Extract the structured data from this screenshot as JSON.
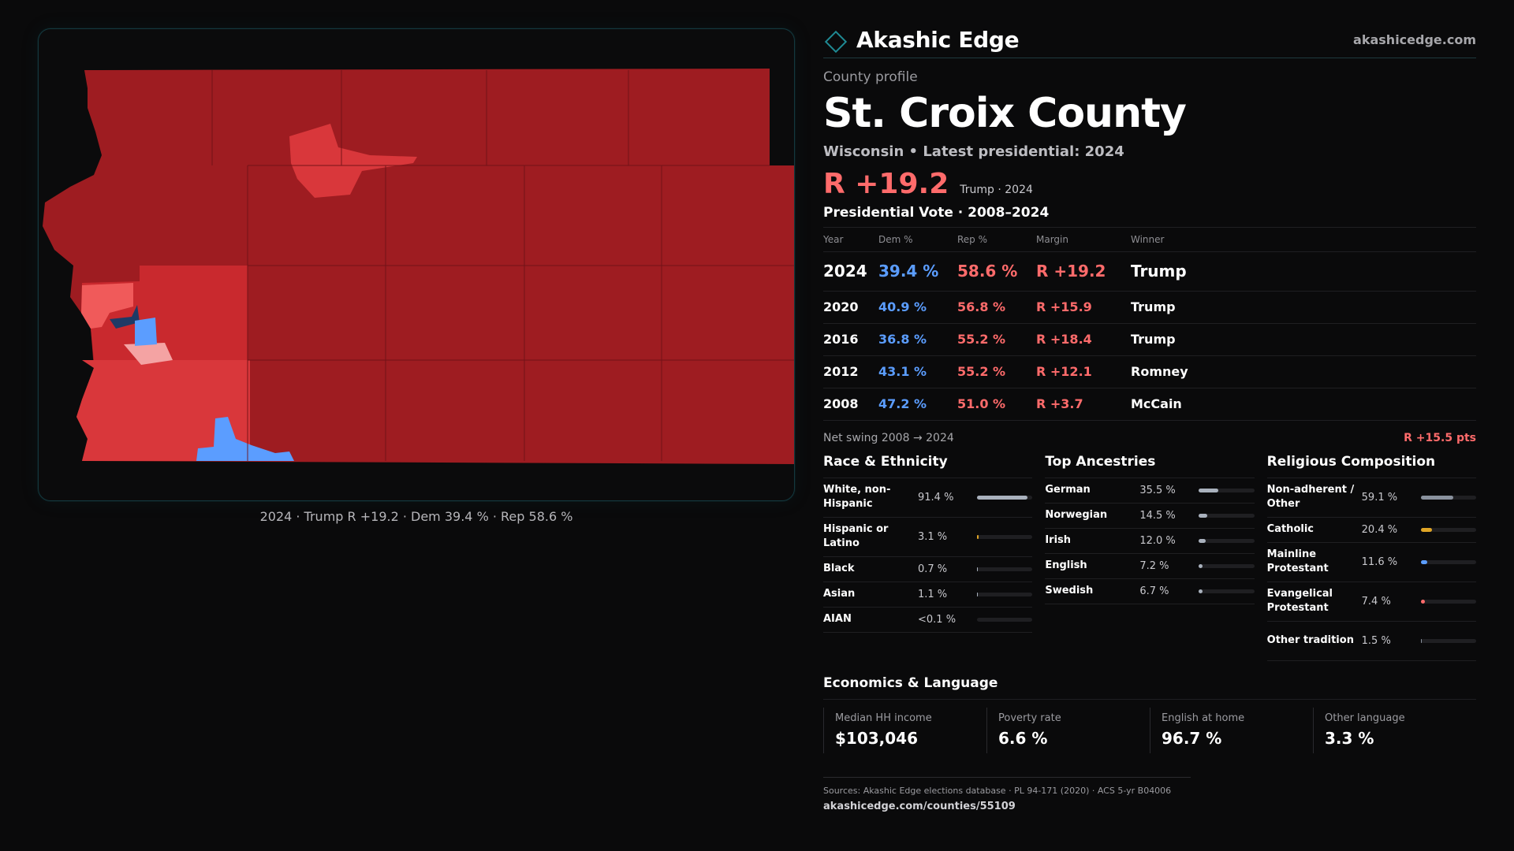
{
  "brand": {
    "name": "Akashic Edge",
    "url": "akashicedge.com",
    "icon": "diamond-outline-icon",
    "accent": "#1f8a94"
  },
  "profile": {
    "kicker": "County profile",
    "title": "St. Croix County",
    "subtitle": "Wisconsin • Latest presidential: 2024",
    "headline_margin": "R +19.2",
    "headline_note": "Trump · 2024"
  },
  "map": {
    "caption": "2024 · Trump R +19.2 · Dem 39.4 % · Rep 58.6 %",
    "colors": {
      "strong_rep": "#9e1c21",
      "lean_rep": "#d9373b",
      "light_rep": "#f27070",
      "dem": "#5b9dff",
      "dark_dem": "#1e3a66"
    }
  },
  "vote": {
    "title": "Presidential Vote · 2008–2024",
    "headers": {
      "year": "Year",
      "dem": "Dem %",
      "rep": "Rep %",
      "margin": "Margin",
      "winner": "Winner"
    },
    "rows": [
      {
        "year": "2024",
        "dem": "39.4 %",
        "rep": "58.6 %",
        "margin": "R +19.2",
        "winner": "Trump"
      },
      {
        "year": "2020",
        "dem": "40.9 %",
        "rep": "56.8 %",
        "margin": "R +15.9",
        "winner": "Trump"
      },
      {
        "year": "2016",
        "dem": "36.8 %",
        "rep": "55.2 %",
        "margin": "R +18.4",
        "winner": "Trump"
      },
      {
        "year": "2012",
        "dem": "43.1 %",
        "rep": "55.2 %",
        "margin": "R +12.1",
        "winner": "Romney"
      },
      {
        "year": "2008",
        "dem": "47.2 %",
        "rep": "51.0 %",
        "margin": "R +3.7",
        "winner": "McCain"
      }
    ],
    "swing_label": "Net swing 2008 → 2024",
    "swing_value": "R +15.5 pts"
  },
  "race": {
    "title": "Race & Ethnicity",
    "rows": [
      {
        "label": "White, non-Hispanic",
        "value": "91.4 %",
        "share": 0.914,
        "color": "#a9b1bd"
      },
      {
        "label": "Hispanic or Latino",
        "value": "3.1 %",
        "share": 0.031,
        "color": "#e0a526"
      },
      {
        "label": "Black",
        "value": "0.7 %",
        "share": 0.007,
        "color": "#a9b1bd"
      },
      {
        "label": "Asian",
        "value": "1.1 %",
        "share": 0.011,
        "color": "#a9b1bd"
      },
      {
        "label": "AIAN",
        "value": "<0.1 %",
        "share": 0.0,
        "color": "#a9b1bd"
      }
    ]
  },
  "ancestry": {
    "title": "Top Ancestries",
    "rows": [
      {
        "label": "German",
        "value": "35.5 %",
        "share": 0.355,
        "color": "#a9b1bd"
      },
      {
        "label": "Norwegian",
        "value": "14.5 %",
        "share": 0.145,
        "color": "#a9b1bd"
      },
      {
        "label": "Irish",
        "value": "12.0 %",
        "share": 0.12,
        "color": "#a9b1bd"
      },
      {
        "label": "English",
        "value": "7.2 %",
        "share": 0.072,
        "color": "#a9b1bd"
      },
      {
        "label": "Swedish",
        "value": "6.7 %",
        "share": 0.067,
        "color": "#a9b1bd"
      }
    ]
  },
  "religion": {
    "title": "Religious Composition",
    "rows": [
      {
        "label": "Non-adherent / Other",
        "value": "59.1 %",
        "share": 0.591,
        "color": "#8a929e"
      },
      {
        "label": "Catholic",
        "value": "20.4 %",
        "share": 0.204,
        "color": "#e0a526"
      },
      {
        "label": "Mainline Protestant",
        "value": "11.6 %",
        "share": 0.116,
        "color": "#5b9dff"
      },
      {
        "label": "Evangelical Protestant",
        "value": "7.4 %",
        "share": 0.074,
        "color": "#ff6b6b"
      },
      {
        "label": "Other tradition",
        "value": "1.5 %",
        "share": 0.015,
        "color": "#8a929e"
      }
    ]
  },
  "economics": {
    "title": "Economics & Language",
    "cells": [
      {
        "label": "Median HH income",
        "value": "$103,046"
      },
      {
        "label": "Poverty rate",
        "value": "6.6 %"
      },
      {
        "label": "English at home",
        "value": "96.7 %"
      },
      {
        "label": "Other language",
        "value": "3.3 %"
      }
    ]
  },
  "sources": {
    "line": "Sources: Akashic Edge elections database · PL 94-171 (2020) · ACS 5-yr B04006",
    "url": "akashicedge.com/counties/55109"
  }
}
